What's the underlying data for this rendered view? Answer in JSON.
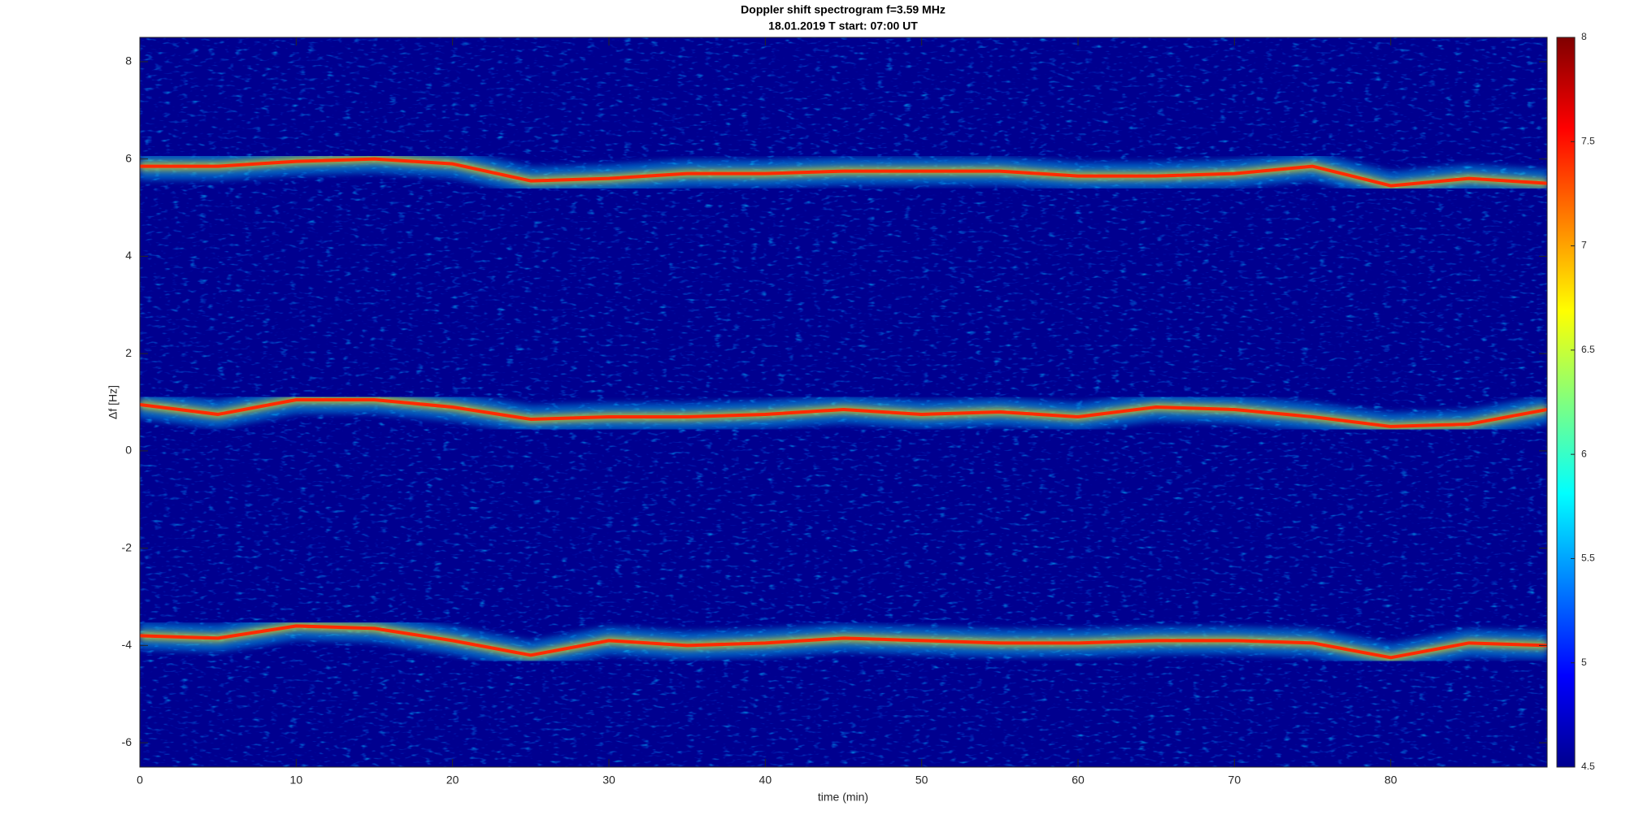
{
  "chart_data": {
    "type": "spectrogram",
    "title": "Doppler shift spectrogram f=3.59 MHz",
    "subtitle": "18.01.2019   T start: 07:00 UT",
    "xlabel": "time (min)",
    "ylabel": "Δf [Hz]",
    "x": [
      0,
      5,
      10,
      15,
      20,
      25,
      30,
      35,
      40,
      45,
      50,
      55,
      60,
      65,
      70,
      75,
      80,
      85,
      90
    ],
    "series": [
      {
        "color": "#ff2a00",
        "values": [
          5.85,
          5.85,
          5.95,
          6.0,
          5.9,
          5.55,
          5.6,
          5.7,
          5.7,
          5.75,
          5.75,
          5.75,
          5.65,
          5.65,
          5.7,
          5.85,
          5.45,
          5.6,
          5.5
        ]
      },
      {
        "color": "#ff2a00",
        "values": [
          0.95,
          0.75,
          1.05,
          1.05,
          0.9,
          0.65,
          0.7,
          0.7,
          0.75,
          0.85,
          0.75,
          0.8,
          0.7,
          0.9,
          0.85,
          0.7,
          0.5,
          0.55,
          0.85
        ]
      },
      {
        "color": "#ff2a00",
        "values": [
          -3.8,
          -3.85,
          -3.6,
          -3.65,
          -3.9,
          -4.2,
          -3.9,
          -4.0,
          -3.95,
          -3.85,
          -3.9,
          -3.95,
          -3.95,
          -3.9,
          -3.9,
          -3.95,
          -4.25,
          -3.95,
          -4.0
        ]
      }
    ],
    "xlim": [
      0,
      90
    ],
    "xticks": [
      0,
      10,
      20,
      30,
      40,
      50,
      60,
      70,
      80
    ],
    "ylim": [
      -6.5,
      8.5
    ],
    "yticks": [
      -6,
      -4,
      -2,
      0,
      2,
      4,
      6,
      8
    ],
    "clim": [
      4.5,
      8
    ],
    "cticks": [
      4.5,
      5,
      5.5,
      6,
      6.5,
      7,
      7.5,
      8
    ]
  }
}
